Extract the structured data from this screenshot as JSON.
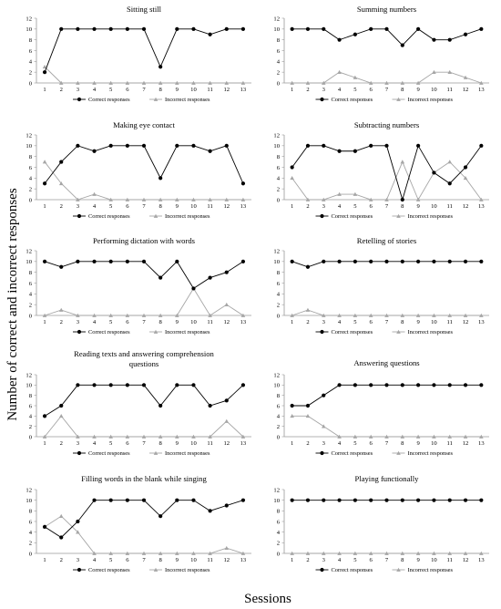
{
  "figure": {
    "y_axis_label": "Number of correct and incorrect responses",
    "x_axis_label": "Sessions",
    "legend": {
      "correct": "Correct responses",
      "incorrect": "Incorrect responses"
    },
    "colors": {
      "correct": "#000000",
      "incorrect": "#a6a6a6",
      "axis": "#9a9a9a"
    }
  },
  "chart_data": [
    {
      "type": "line",
      "title": "Sitting still",
      "categories": [
        1,
        2,
        3,
        4,
        5,
        6,
        7,
        8,
        9,
        10,
        11,
        12,
        13
      ],
      "ylim": [
        0,
        12
      ],
      "yticks": [
        0,
        2,
        4,
        6,
        8,
        10,
        12
      ],
      "series": [
        {
          "name": "Correct responses",
          "values": [
            2,
            10,
            10,
            10,
            10,
            10,
            10,
            3,
            10,
            10,
            9,
            10,
            10
          ]
        },
        {
          "name": "Incorrect responses",
          "values": [
            3,
            0,
            0,
            0,
            0,
            0,
            0,
            0,
            0,
            0,
            0,
            0,
            0
          ]
        }
      ]
    },
    {
      "type": "line",
      "title": "Summing numbers",
      "categories": [
        1,
        2,
        3,
        4,
        5,
        6,
        7,
        8,
        9,
        10,
        11,
        12,
        13
      ],
      "ylim": [
        0,
        12
      ],
      "yticks": [
        0,
        2,
        4,
        6,
        8,
        10,
        12
      ],
      "series": [
        {
          "name": "Correct responses",
          "values": [
            10,
            10,
            10,
            8,
            9,
            10,
            10,
            7,
            10,
            8,
            8,
            9,
            10
          ]
        },
        {
          "name": "Incorrect responses",
          "values": [
            0,
            0,
            0,
            2,
            1,
            0,
            0,
            0,
            0,
            2,
            2,
            1,
            0
          ]
        }
      ]
    },
    {
      "type": "line",
      "title": "Making eye contact",
      "categories": [
        1,
        2,
        3,
        4,
        5,
        6,
        7,
        8,
        9,
        10,
        11,
        12,
        13
      ],
      "ylim": [
        0,
        12
      ],
      "yticks": [
        0,
        2,
        4,
        6,
        8,
        10,
        12
      ],
      "series": [
        {
          "name": "Correct responses",
          "values": [
            3,
            7,
            10,
            9,
            10,
            10,
            10,
            4,
            10,
            10,
            9,
            10,
            3
          ]
        },
        {
          "name": "Incorrect responses",
          "values": [
            7,
            3,
            0,
            1,
            0,
            0,
            0,
            0,
            0,
            0,
            0,
            0,
            0
          ]
        }
      ]
    },
    {
      "type": "line",
      "title": "Subtracting numbers",
      "categories": [
        1,
        2,
        3,
        4,
        5,
        6,
        7,
        8,
        9,
        10,
        11,
        12,
        13
      ],
      "ylim": [
        0,
        12
      ],
      "yticks": [
        0,
        2,
        4,
        6,
        8,
        10,
        12
      ],
      "series": [
        {
          "name": "Correct responses",
          "values": [
            6,
            10,
            10,
            9,
            9,
            10,
            10,
            0,
            10,
            5,
            3,
            6,
            10
          ]
        },
        {
          "name": "Incorrect responses",
          "values": [
            4,
            0,
            0,
            1,
            1,
            0,
            0,
            7,
            0,
            5,
            7,
            4,
            0
          ]
        }
      ]
    },
    {
      "type": "line",
      "title": "Performing dictation with words",
      "categories": [
        1,
        2,
        3,
        4,
        5,
        6,
        7,
        8,
        9,
        10,
        11,
        12,
        13
      ],
      "ylim": [
        0,
        12
      ],
      "yticks": [
        0,
        2,
        4,
        6,
        8,
        10,
        12
      ],
      "series": [
        {
          "name": "Correct responses",
          "values": [
            10,
            9,
            10,
            10,
            10,
            10,
            10,
            7,
            10,
            5,
            7,
            8,
            10
          ]
        },
        {
          "name": "Incorrect responses",
          "values": [
            0,
            1,
            0,
            0,
            0,
            0,
            0,
            0,
            0,
            5,
            0,
            2,
            0
          ]
        }
      ]
    },
    {
      "type": "line",
      "title": "Retelling of stories",
      "categories": [
        1,
        2,
        3,
        4,
        5,
        6,
        7,
        8,
        9,
        10,
        11,
        12,
        13
      ],
      "ylim": [
        0,
        12
      ],
      "yticks": [
        0,
        2,
        4,
        6,
        8,
        10,
        12
      ],
      "series": [
        {
          "name": "Correct responses",
          "values": [
            10,
            9,
            10,
            10,
            10,
            10,
            10,
            10,
            10,
            10,
            10,
            10,
            10
          ]
        },
        {
          "name": "Incorrect responses",
          "values": [
            0,
            1,
            0,
            0,
            0,
            0,
            0,
            0,
            0,
            0,
            0,
            0,
            0
          ]
        }
      ]
    },
    {
      "type": "line",
      "title": "Reading texts and answering comprehension questions",
      "categories": [
        1,
        2,
        3,
        4,
        5,
        6,
        7,
        8,
        9,
        10,
        11,
        12,
        13
      ],
      "ylim": [
        0,
        12
      ],
      "yticks": [
        0,
        2,
        4,
        6,
        8,
        10,
        12
      ],
      "series": [
        {
          "name": "Correct responses",
          "values": [
            4,
            6,
            10,
            10,
            10,
            10,
            10,
            6,
            10,
            10,
            6,
            7,
            10
          ]
        },
        {
          "name": "Incorrect responses",
          "values": [
            0,
            4,
            0,
            0,
            0,
            0,
            0,
            0,
            0,
            0,
            0,
            3,
            0
          ]
        }
      ]
    },
    {
      "type": "line",
      "title": "Answering questions",
      "categories": [
        1,
        2,
        3,
        4,
        5,
        6,
        7,
        8,
        9,
        10,
        11,
        12,
        13
      ],
      "ylim": [
        0,
        12
      ],
      "yticks": [
        0,
        2,
        4,
        6,
        8,
        10,
        12
      ],
      "series": [
        {
          "name": "Correct responses",
          "values": [
            6,
            6,
            8,
            10,
            10,
            10,
            10,
            10,
            10,
            10,
            10,
            10,
            10
          ]
        },
        {
          "name": "Incorrect responses",
          "values": [
            4,
            4,
            2,
            0,
            0,
            0,
            0,
            0,
            0,
            0,
            0,
            0,
            0
          ]
        }
      ]
    },
    {
      "type": "line",
      "title": "Filling words in the blank while singing",
      "categories": [
        1,
        2,
        3,
        4,
        5,
        6,
        7,
        8,
        9,
        10,
        11,
        12,
        13
      ],
      "ylim": [
        0,
        12
      ],
      "yticks": [
        0,
        2,
        4,
        6,
        8,
        10,
        12
      ],
      "series": [
        {
          "name": "Correct responses",
          "values": [
            5,
            3,
            6,
            10,
            10,
            10,
            10,
            7,
            10,
            10,
            8,
            9,
            10
          ]
        },
        {
          "name": "Incorrect responses",
          "values": [
            5,
            7,
            4,
            0,
            0,
            0,
            0,
            0,
            0,
            0,
            0,
            1,
            0
          ]
        }
      ]
    },
    {
      "type": "line",
      "title": "Playing functionally",
      "categories": [
        1,
        2,
        3,
        4,
        5,
        6,
        7,
        8,
        9,
        10,
        11,
        12,
        13
      ],
      "ylim": [
        0,
        12
      ],
      "yticks": [
        0,
        2,
        4,
        6,
        8,
        10,
        12
      ],
      "series": [
        {
          "name": "Correct responses",
          "values": [
            10,
            10,
            10,
            10,
            10,
            10,
            10,
            10,
            10,
            10,
            10,
            10,
            10
          ]
        },
        {
          "name": "Incorrect responses",
          "values": [
            0,
            0,
            0,
            0,
            0,
            0,
            0,
            0,
            0,
            0,
            0,
            0,
            0
          ]
        }
      ]
    }
  ]
}
